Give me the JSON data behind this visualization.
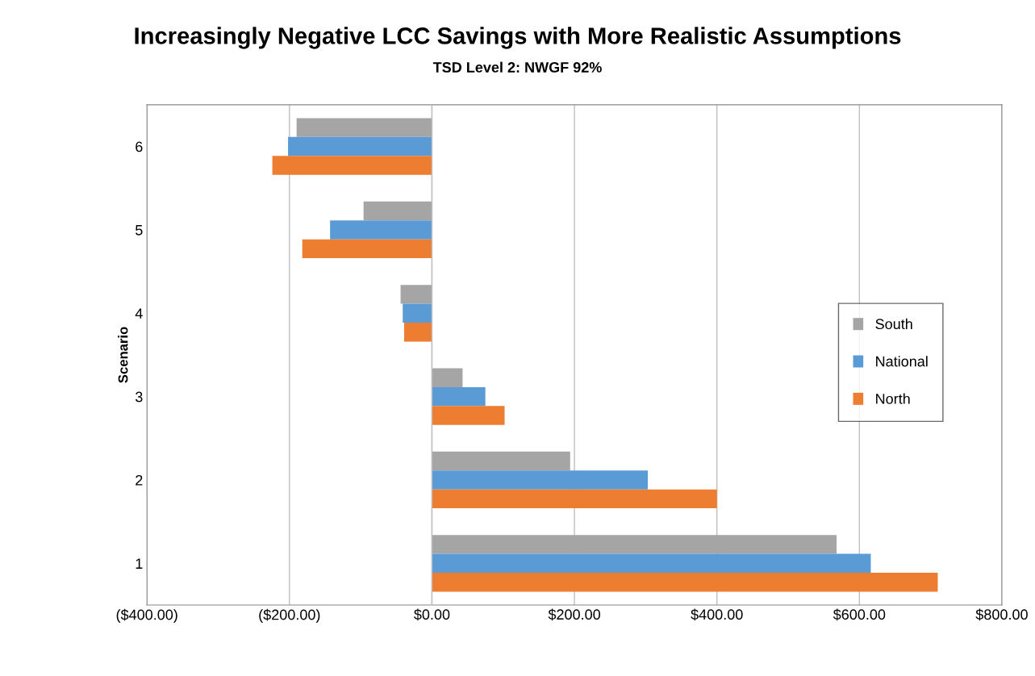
{
  "chart_data": {
    "type": "bar",
    "orientation": "horizontal",
    "title": "Increasingly Negative LCC Savings with More Realistic Assumptions",
    "subtitle": "TSD Level 2: NWGF 92%",
    "ylabel": "Scenario",
    "categories": [
      "6",
      "5",
      "4",
      "3",
      "2",
      "1"
    ],
    "series": [
      {
        "name": "South",
        "color": "#a5a5a5",
        "values": [
          -190,
          -96,
          -44,
          43,
          194,
          568
        ]
      },
      {
        "name": "National",
        "color": "#5b9bd5",
        "values": [
          -202,
          -143,
          -41,
          75,
          303,
          616
        ]
      },
      {
        "name": "North",
        "color": "#ed7d31",
        "values": [
          -224,
          -182,
          -39,
          102,
          400,
          710
        ]
      }
    ],
    "xlim": [
      -400,
      800
    ],
    "xticks": [
      {
        "value": -400,
        "label": "($400.00)"
      },
      {
        "value": -200,
        "label": "($200.00)"
      },
      {
        "value": 0,
        "label": "$0.00"
      },
      {
        "value": 200,
        "label": "$200.00"
      },
      {
        "value": 400,
        "label": "$400.00"
      },
      {
        "value": 600,
        "label": "$600.00"
      },
      {
        "value": 800,
        "label": "$800.00"
      }
    ],
    "grid": "x",
    "legend": "right"
  }
}
